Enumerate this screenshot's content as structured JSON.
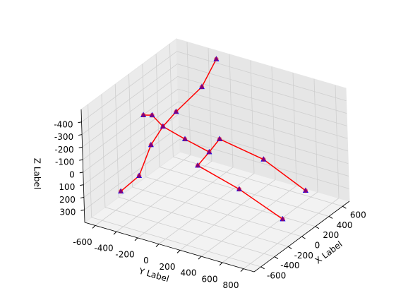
{
  "chart_data": {
    "type": "scatter3d",
    "xlabel": "X Label",
    "ylabel": "Y Label",
    "zlabel": "Z Label",
    "xlim": [
      -700,
      700
    ],
    "ylim": [
      -700,
      900
    ],
    "zlim": [
      400,
      -500
    ],
    "xticks": [
      -600,
      -400,
      -200,
      0,
      200,
      400,
      600
    ],
    "yticks": [
      -600,
      -400,
      -200,
      0,
      200,
      400,
      600,
      800
    ],
    "zticks": [
      -400,
      -300,
      -200,
      -100,
      0,
      100,
      200,
      300
    ],
    "grid": true,
    "points": {
      "marker_color": "#0000ff",
      "overlay_color": "#ff0000",
      "x": [
        630,
        440,
        210,
        105,
        -30,
        -130,
        -267,
        115,
        150,
        105,
        110,
        250,
        390,
        350,
        30,
        95,
        80
      ],
      "y": [
        -280,
        -300,
        -400,
        -460,
        -490,
        -546,
        -634,
        -650,
        -590,
        -254,
        -30,
        -20,
        300,
        718,
        -90,
        255,
        670
      ],
      "z": [
        -470,
        -320,
        -190,
        -100,
        0,
        220,
        310,
        -140,
        -140,
        -50,
        0,
        -50,
        90,
        220,
        90,
        220,
        350
      ]
    },
    "lines": [
      {
        "color": "#ff0000",
        "x": [
          630,
          440,
          210,
          105,
          -30,
          -130,
          -267
        ],
        "y": [
          -280,
          -300,
          -400,
          -460,
          -490,
          -546,
          -634
        ],
        "z": [
          -470,
          -320,
          -190,
          -100,
          0,
          220,
          310
        ]
      },
      {
        "color": "#ff0000",
        "x": [
          115,
          150,
          105
        ],
        "y": [
          -650,
          -590,
          -460
        ],
        "z": [
          -140,
          -140,
          -100
        ]
      },
      {
        "color": "#ff0000",
        "x": [
          105,
          105,
          110
        ],
        "y": [
          -460,
          -254,
          -30
        ],
        "z": [
          -100,
          -50,
          0
        ]
      },
      {
        "color": "#ff0000",
        "x": [
          110,
          250,
          390,
          350
        ],
        "y": [
          -30,
          -20,
          300,
          718
        ],
        "z": [
          0,
          -50,
          90,
          220
        ]
      },
      {
        "color": "#ff0000",
        "x": [
          110,
          30,
          95,
          80
        ],
        "y": [
          -30,
          -90,
          255,
          670
        ],
        "z": [
          0,
          90,
          220,
          350
        ]
      }
    ]
  }
}
